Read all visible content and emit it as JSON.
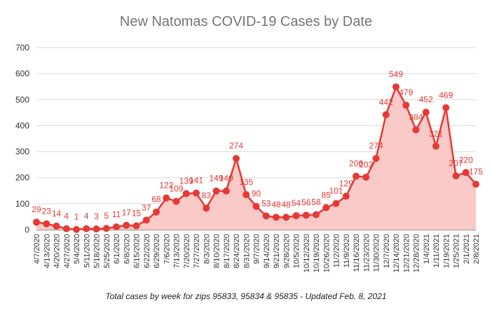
{
  "chart_data": {
    "type": "area",
    "title": "New Natomas COVID-19 Cases by Date",
    "footnote": "Total cases by week for zips 95833, 95834 & 95835 - Updated Feb. 8, 2021",
    "xlabel": "",
    "ylabel": "",
    "ylim": [
      0,
      700
    ],
    "yticks": [
      0,
      100,
      200,
      300,
      400,
      500,
      600,
      700
    ],
    "grid": true,
    "legend": "none",
    "colors": {
      "line": "#e53935",
      "fill": "#f8c9c6",
      "label": "#e53935",
      "title": "#757575",
      "grid": "#d9d9d9"
    },
    "categories": [
      "4/7/2020",
      "4/13/2020",
      "4/20/2020",
      "4/27/2020",
      "5/4/2020",
      "5/11/2020",
      "5/18/2020",
      "5/25/2020",
      "6/1/2020",
      "6/8/2020",
      "6/15/2020",
      "6/22/2020",
      "6/29/2020",
      "7/6/2020",
      "7/13/2020",
      "7/20/2020",
      "7/27/2020",
      "8/3/2020",
      "8/10/2020",
      "8/17/2020",
      "8/24/2020",
      "8/31/2020",
      "9/7/2020",
      "9/14/2020",
      "9/21/2020",
      "9/28/2020",
      "10/5/2020",
      "10/12/2020",
      "10/19/2020",
      "10/26/2020",
      "11/2/2020",
      "11/9/2020",
      "11/16/2020",
      "11/23/2020",
      "11/30/2020",
      "12/7/2020",
      "12/14/2020",
      "12/21/2020",
      "12/28/2020",
      "1/4/2021",
      "1/11/2021",
      "1/19/2021",
      "1/25/2021",
      "2/1/2021",
      "2/8/2021"
    ],
    "values": [
      29,
      23,
      14,
      4,
      1,
      4,
      3,
      5,
      11,
      17,
      15,
      37,
      68,
      122,
      109,
      139,
      141,
      83,
      149,
      149,
      274,
      135,
      90,
      53,
      48,
      48,
      54,
      56,
      58,
      85,
      101,
      129,
      206,
      202,
      274,
      442,
      549,
      479,
      384,
      452,
      321,
      469,
      207,
      220,
      175
    ],
    "data_labels": [
      "29",
      "23",
      "14",
      "4",
      "1",
      "4",
      "3",
      "5",
      "11",
      "17",
      "15",
      "37",
      "68",
      "122",
      "109",
      "139",
      "141",
      "83",
      "149",
      "149",
      "274",
      "135",
      "90",
      "53",
      "48",
      "48",
      "54",
      "56",
      "58",
      "85",
      "101",
      "129",
      "206",
      "202",
      "274",
      "442",
      "549",
      "479",
      "384",
      "452",
      "321",
      "469",
      "207",
      "220",
      "175"
    ]
  }
}
